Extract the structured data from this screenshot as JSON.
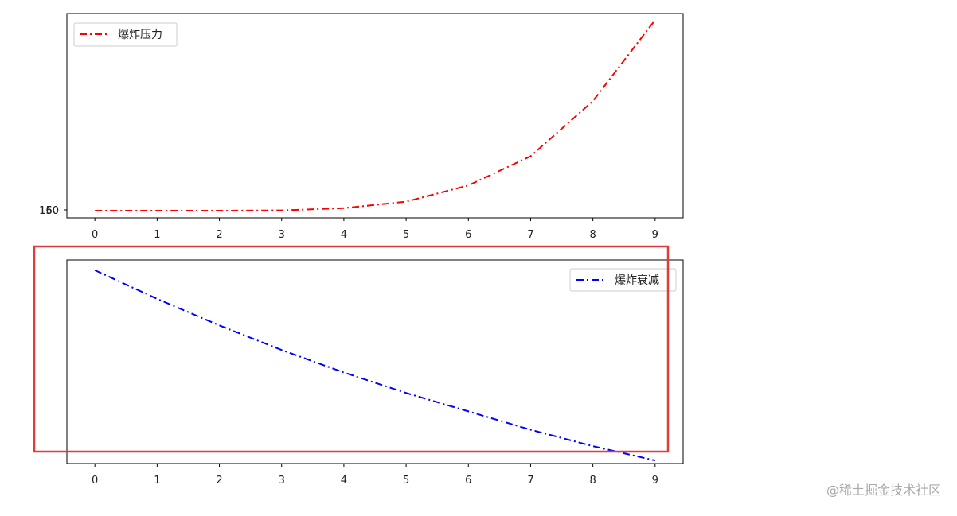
{
  "chart_data": [
    {
      "type": "line",
      "x": [
        0,
        1,
        2,
        3,
        4,
        5,
        6,
        7,
        8,
        9
      ],
      "xticks": [
        "0",
        "1",
        "2",
        "3",
        "4",
        "5",
        "6",
        "7",
        "8",
        "9"
      ],
      "yticks": [
        "150",
        "160"
      ],
      "series": [
        {
          "name": "爆炸压力",
          "values": [
            1.0,
            1.0,
            1.0,
            1.5,
            5,
            15,
            40,
            85,
            170,
            295
          ],
          "color": "#ff0000",
          "linestyle": "dash-dot"
        }
      ],
      "ylim": [
        -10,
        305
      ],
      "legend": "top-left",
      "grid": false
    },
    {
      "type": "line",
      "x": [
        0,
        1,
        2,
        3,
        4,
        5,
        6,
        7,
        8,
        9
      ],
      "xticks": [
        "0",
        "1",
        "2",
        "3",
        "4",
        "5",
        "6",
        "7",
        "8",
        "9"
      ],
      "series": [
        {
          "name": "爆炸衰减",
          "values": [
            1.0,
            0.86,
            0.73,
            0.61,
            0.5,
            0.4,
            0.31,
            0.22,
            0.14,
            0.07
          ],
          "color": "#0000ff",
          "linestyle": "dash-dot"
        }
      ],
      "ylim": [
        0.055,
        1.05
      ],
      "legend": "top-right",
      "grid": false
    }
  ],
  "highlight": {
    "color": "#e03c3c"
  },
  "watermark": "@稀土掘金技术社区"
}
